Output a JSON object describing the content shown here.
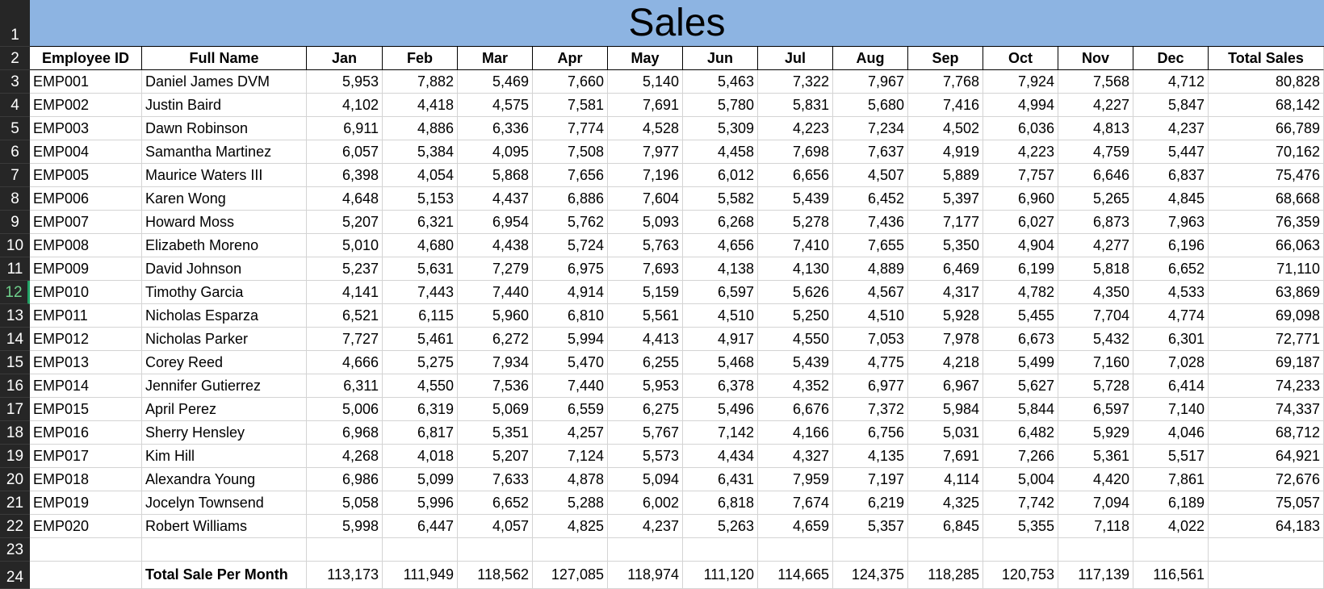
{
  "title": "Sales",
  "columns": [
    "Employee ID",
    "Full Name",
    "Jan",
    "Feb",
    "Mar",
    "Apr",
    "May",
    "Jun",
    "Jul",
    "Aug",
    "Sep",
    "Oct",
    "Nov",
    "Dec",
    "Total Sales"
  ],
  "row_numbers": [
    "1",
    "2",
    "3",
    "4",
    "5",
    "6",
    "7",
    "8",
    "9",
    "10",
    "11",
    "12",
    "13",
    "14",
    "15",
    "16",
    "17",
    "18",
    "19",
    "20",
    "21",
    "22",
    "23",
    "24"
  ],
  "active_row": "12",
  "rows": [
    [
      "EMP001",
      "Daniel James DVM",
      "5,953",
      "7,882",
      "5,469",
      "7,660",
      "5,140",
      "5,463",
      "7,322",
      "7,967",
      "7,768",
      "7,924",
      "7,568",
      "4,712",
      "80,828"
    ],
    [
      "EMP002",
      "Justin Baird",
      "4,102",
      "4,418",
      "4,575",
      "7,581",
      "7,691",
      "5,780",
      "5,831",
      "5,680",
      "7,416",
      "4,994",
      "4,227",
      "5,847",
      "68,142"
    ],
    [
      "EMP003",
      "Dawn Robinson",
      "6,911",
      "4,886",
      "6,336",
      "7,774",
      "4,528",
      "5,309",
      "4,223",
      "7,234",
      "4,502",
      "6,036",
      "4,813",
      "4,237",
      "66,789"
    ],
    [
      "EMP004",
      "Samantha Martinez",
      "6,057",
      "5,384",
      "4,095",
      "7,508",
      "7,977",
      "4,458",
      "7,698",
      "7,637",
      "4,919",
      "4,223",
      "4,759",
      "5,447",
      "70,162"
    ],
    [
      "EMP005",
      "Maurice Waters III",
      "6,398",
      "4,054",
      "5,868",
      "7,656",
      "7,196",
      "6,012",
      "6,656",
      "4,507",
      "5,889",
      "7,757",
      "6,646",
      "6,837",
      "75,476"
    ],
    [
      "EMP006",
      "Karen Wong",
      "4,648",
      "5,153",
      "4,437",
      "6,886",
      "7,604",
      "5,582",
      "5,439",
      "6,452",
      "5,397",
      "6,960",
      "5,265",
      "4,845",
      "68,668"
    ],
    [
      "EMP007",
      "Howard Moss",
      "5,207",
      "6,321",
      "6,954",
      "5,762",
      "5,093",
      "6,268",
      "5,278",
      "7,436",
      "7,177",
      "6,027",
      "6,873",
      "7,963",
      "76,359"
    ],
    [
      "EMP008",
      "Elizabeth Moreno",
      "5,010",
      "4,680",
      "4,438",
      "5,724",
      "5,763",
      "4,656",
      "7,410",
      "7,655",
      "5,350",
      "4,904",
      "4,277",
      "6,196",
      "66,063"
    ],
    [
      "EMP009",
      "David Johnson",
      "5,237",
      "5,631",
      "7,279",
      "6,975",
      "7,693",
      "4,138",
      "4,130",
      "4,889",
      "6,469",
      "6,199",
      "5,818",
      "6,652",
      "71,110"
    ],
    [
      "EMP010",
      "Timothy Garcia",
      "4,141",
      "7,443",
      "7,440",
      "4,914",
      "5,159",
      "6,597",
      "5,626",
      "4,567",
      "4,317",
      "4,782",
      "4,350",
      "4,533",
      "63,869"
    ],
    [
      "EMP011",
      "Nicholas Esparza",
      "6,521",
      "6,115",
      "5,960",
      "6,810",
      "5,561",
      "4,510",
      "5,250",
      "4,510",
      "5,928",
      "5,455",
      "7,704",
      "4,774",
      "69,098"
    ],
    [
      "EMP012",
      "Nicholas Parker",
      "7,727",
      "5,461",
      "6,272",
      "5,994",
      "4,413",
      "4,917",
      "4,550",
      "7,053",
      "7,978",
      "6,673",
      "5,432",
      "6,301",
      "72,771"
    ],
    [
      "EMP013",
      "Corey Reed",
      "4,666",
      "5,275",
      "7,934",
      "5,470",
      "6,255",
      "5,468",
      "5,439",
      "4,775",
      "4,218",
      "5,499",
      "7,160",
      "7,028",
      "69,187"
    ],
    [
      "EMP014",
      "Jennifer Gutierrez",
      "6,311",
      "4,550",
      "7,536",
      "7,440",
      "5,953",
      "6,378",
      "4,352",
      "6,977",
      "6,967",
      "5,627",
      "5,728",
      "6,414",
      "74,233"
    ],
    [
      "EMP015",
      "April Perez",
      "5,006",
      "6,319",
      "5,069",
      "6,559",
      "6,275",
      "5,496",
      "6,676",
      "7,372",
      "5,984",
      "5,844",
      "6,597",
      "7,140",
      "74,337"
    ],
    [
      "EMP016",
      "Sherry Hensley",
      "6,968",
      "6,817",
      "5,351",
      "4,257",
      "5,767",
      "7,142",
      "4,166",
      "6,756",
      "5,031",
      "6,482",
      "5,929",
      "4,046",
      "68,712"
    ],
    [
      "EMP017",
      "Kim Hill",
      "4,268",
      "4,018",
      "5,207",
      "7,124",
      "5,573",
      "4,434",
      "4,327",
      "4,135",
      "7,691",
      "7,266",
      "5,361",
      "5,517",
      "64,921"
    ],
    [
      "EMP018",
      "Alexandra Young",
      "6,986",
      "5,099",
      "7,633",
      "4,878",
      "5,094",
      "6,431",
      "7,959",
      "7,197",
      "4,114",
      "5,004",
      "4,420",
      "7,861",
      "72,676"
    ],
    [
      "EMP019",
      "Jocelyn Townsend",
      "5,058",
      "5,996",
      "6,652",
      "5,288",
      "6,002",
      "6,818",
      "7,674",
      "6,219",
      "4,325",
      "7,742",
      "7,094",
      "6,189",
      "75,057"
    ],
    [
      "EMP020",
      "Robert Williams",
      "5,998",
      "6,447",
      "4,057",
      "4,825",
      "4,237",
      "5,263",
      "4,659",
      "5,357",
      "6,845",
      "5,355",
      "7,118",
      "4,022",
      "64,183"
    ],
    [
      "",
      "",
      "",
      "",
      "",
      "",
      "",
      "",
      "",
      "",
      "",
      "",
      "",
      "",
      ""
    ],
    [
      "",
      "Total Sale Per Month",
      "113,173",
      "111,949",
      "118,562",
      "127,085",
      "118,974",
      "111,120",
      "114,665",
      "124,375",
      "118,285",
      "120,753",
      "117,139",
      "116,561",
      ""
    ]
  ]
}
